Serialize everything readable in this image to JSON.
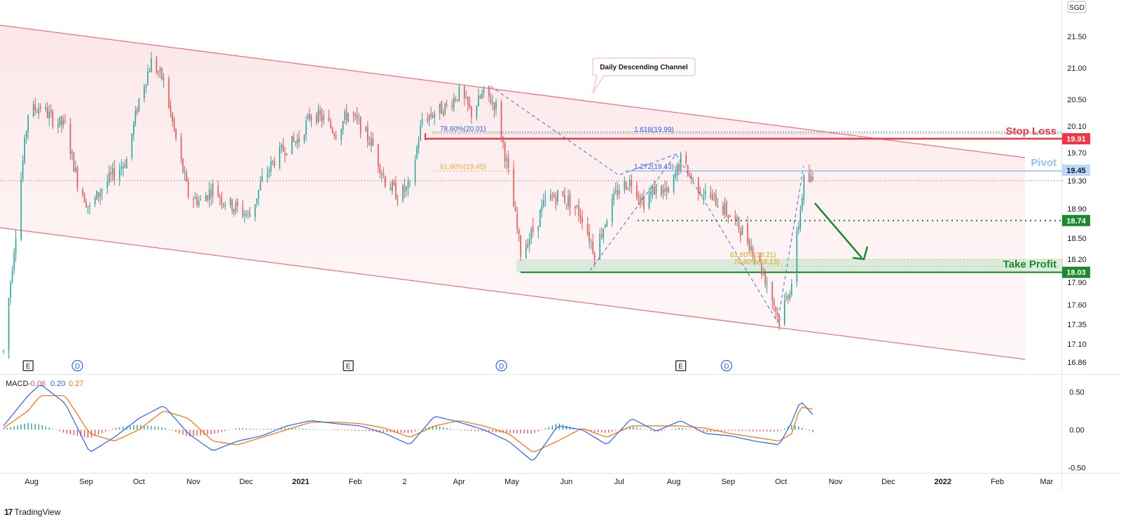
{
  "currency": "SGD",
  "branding": "TradingView",
  "chart_data": {
    "type": "candlestick",
    "title": "",
    "price_axis": {
      "ticks": [
        21.5,
        21.0,
        20.5,
        20.1,
        19.7,
        19.3,
        18.9,
        18.5,
        18.2,
        17.9,
        17.6,
        17.35,
        17.1,
        16.86
      ],
      "tick_labels": [
        "21.50",
        "21.00",
        "20.50",
        "20.10",
        "19.70",
        "19.30",
        "18.90",
        "18.50",
        "18.20",
        "17.90",
        "17.60",
        "17.35",
        "17.10",
        "16.86"
      ],
      "range": [
        16.86,
        21.5
      ]
    },
    "time_axis": {
      "labels": [
        "Aug",
        "Sep",
        "Oct",
        "Nov",
        "Dec",
        "2021",
        "Feb",
        "2",
        "Apr",
        "May",
        "Jun",
        "Jul",
        "Aug",
        "Sep",
        "Oct",
        "Nov",
        "Dec",
        "2022",
        "Feb",
        "Mar"
      ]
    },
    "price_path": [
      [
        "2020-07-24",
        17.0
      ],
      [
        "2020-07-31",
        18.6
      ],
      [
        "2020-08-07",
        20.3
      ],
      [
        "2020-08-14",
        20.4
      ],
      [
        "2020-08-21",
        20.2
      ],
      [
        "2020-08-28",
        20.1
      ],
      [
        "2020-09-04",
        19.3
      ],
      [
        "2020-09-11",
        18.9
      ],
      [
        "2020-09-18",
        19.2
      ],
      [
        "2020-09-25",
        19.4
      ],
      [
        "2020-10-02",
        19.6
      ],
      [
        "2020-10-09",
        20.5
      ],
      [
        "2020-10-16",
        21.1
      ],
      [
        "2020-10-23",
        20.8
      ],
      [
        "2020-10-30",
        19.9
      ],
      [
        "2020-11-06",
        19.1
      ],
      [
        "2020-11-13",
        19.0
      ],
      [
        "2020-11-20",
        19.2
      ],
      [
        "2020-11-27",
        19.0
      ],
      [
        "2020-12-04",
        18.9
      ],
      [
        "2020-12-11",
        18.8
      ],
      [
        "2020-12-18",
        19.3
      ],
      [
        "2020-12-25",
        19.6
      ],
      [
        "2021-01-01",
        19.8
      ],
      [
        "2021-01-08",
        19.9
      ],
      [
        "2021-01-15",
        20.3
      ],
      [
        "2021-01-22",
        20.2
      ],
      [
        "2021-01-29",
        20.0
      ],
      [
        "2021-02-05",
        20.3
      ],
      [
        "2021-02-12",
        20.1
      ],
      [
        "2021-02-19",
        19.8
      ],
      [
        "2021-02-26",
        19.3
      ],
      [
        "2021-03-05",
        19.1
      ],
      [
        "2021-03-12",
        19.2
      ],
      [
        "2021-03-19",
        20.2
      ],
      [
        "2021-03-26",
        20.3
      ],
      [
        "2021-04-02",
        20.4
      ],
      [
        "2021-04-09",
        20.6
      ],
      [
        "2021-04-16",
        20.3
      ],
      [
        "2021-04-23",
        20.6
      ],
      [
        "2021-04-30",
        20.4
      ],
      [
        "2021-05-07",
        19.4
      ],
      [
        "2021-05-14",
        18.3
      ],
      [
        "2021-05-21",
        18.6
      ],
      [
        "2021-05-28",
        19.0
      ],
      [
        "2021-06-04",
        19.1
      ],
      [
        "2021-06-11",
        19.0
      ],
      [
        "2021-06-18",
        18.8
      ],
      [
        "2021-06-25",
        18.3
      ],
      [
        "2021-07-02",
        18.8
      ],
      [
        "2021-07-09",
        19.2
      ],
      [
        "2021-07-16",
        19.3
      ],
      [
        "2021-07-23",
        19.0
      ],
      [
        "2021-07-30",
        19.2
      ],
      [
        "2021-08-06",
        19.1
      ],
      [
        "2021-08-13",
        19.6
      ],
      [
        "2021-08-20",
        19.3
      ],
      [
        "2021-08-27",
        19.1
      ],
      [
        "2021-09-03",
        19.0
      ],
      [
        "2021-09-10",
        18.8
      ],
      [
        "2021-09-17",
        18.6
      ],
      [
        "2021-09-24",
        18.3
      ],
      [
        "2021-10-01",
        17.9
      ],
      [
        "2021-10-08",
        17.4
      ],
      [
        "2021-10-15",
        17.9
      ],
      [
        "2021-10-22",
        19.3
      ],
      [
        "2021-10-27",
        19.3
      ]
    ],
    "lines": {
      "stop_loss": {
        "label": "Stop Loss",
        "value": "19.91",
        "color": "#f23645"
      },
      "pivot": {
        "label": "Pivot",
        "value": "19.45",
        "color": "#90bff9"
      },
      "support_1": {
        "value": "18.74",
        "color": "#1b8a2e"
      },
      "take_profit": {
        "label": "Take Profit",
        "value": "18.03",
        "color": "#1b8a2e"
      },
      "last_price": {
        "value": 19.3,
        "color": "#f23645"
      }
    },
    "fib_labels": {
      "top_786": "78.60%(20.01)",
      "top_618ext": "1.618(19.99)",
      "mid_618": "61.80%(19.45)",
      "mid_1272": "1.272(19.43)",
      "low_618": "61.80%(18.21)",
      "low_786": "78.60%(18.13)"
    },
    "annotations": {
      "channel_callout": "Daily Descending Channel"
    },
    "event_markers": [
      {
        "type": "E",
        "date": "2020-08-07"
      },
      {
        "type": "D",
        "date": "2020-09-04"
      },
      {
        "type": "E",
        "date": "2021-02-05"
      },
      {
        "type": "D",
        "date": "2021-05-03"
      },
      {
        "type": "E",
        "date": "2021-08-13"
      },
      {
        "type": "D",
        "date": "2021-09-08"
      }
    ],
    "macd": {
      "label": "MACD",
      "histogram_value": "-0.06",
      "macd_value": "0.20",
      "signal_value": "0.27",
      "colors": {
        "macd": "#2962ff",
        "signal": "#ff6d00",
        "hist_pos": "#26a69a",
        "hist_neg": "#ef5350",
        "label_neg": "#ef5350"
      },
      "ticks": [
        0.5,
        0.0,
        -0.5
      ],
      "tick_labels": [
        "0.50",
        "0.00",
        "-0.50"
      ],
      "range": [
        -0.55,
        0.65
      ],
      "series_path": [
        [
          "2020-07-24",
          0.05,
          0.02
        ],
        [
          "2020-08-07",
          0.45,
          0.25
        ],
        [
          "2020-08-14",
          0.6,
          0.45
        ],
        [
          "2020-08-28",
          0.35,
          0.45
        ],
        [
          "2020-09-11",
          -0.3,
          -0.05
        ],
        [
          "2020-09-25",
          -0.1,
          -0.15
        ],
        [
          "2020-10-09",
          0.15,
          0.0
        ],
        [
          "2020-10-23",
          0.32,
          0.25
        ],
        [
          "2020-11-06",
          -0.05,
          0.15
        ],
        [
          "2020-11-20",
          -0.28,
          -0.15
        ],
        [
          "2020-12-04",
          -0.15,
          -0.2
        ],
        [
          "2020-12-18",
          -0.08,
          -0.1
        ],
        [
          "2021-01-01",
          0.05,
          0.0
        ],
        [
          "2021-01-15",
          0.12,
          0.1
        ],
        [
          "2021-01-29",
          0.08,
          0.1
        ],
        [
          "2021-02-12",
          0.05,
          0.08
        ],
        [
          "2021-02-26",
          -0.05,
          0.02
        ],
        [
          "2021-03-12",
          -0.2,
          -0.1
        ],
        [
          "2021-03-26",
          0.18,
          0.05
        ],
        [
          "2021-04-09",
          0.1,
          0.12
        ],
        [
          "2021-04-23",
          0.0,
          0.05
        ],
        [
          "2021-05-07",
          -0.15,
          -0.05
        ],
        [
          "2021-05-21",
          -0.42,
          -0.3
        ],
        [
          "2021-06-04",
          0.05,
          -0.15
        ],
        [
          "2021-06-18",
          0.0,
          0.02
        ],
        [
          "2021-07-02",
          -0.2,
          -0.1
        ],
        [
          "2021-07-16",
          0.15,
          0.05
        ],
        [
          "2021-07-30",
          -0.02,
          0.05
        ],
        [
          "2021-08-13",
          0.12,
          0.05
        ],
        [
          "2021-08-27",
          -0.05,
          0.02
        ],
        [
          "2021-09-10",
          -0.08,
          -0.05
        ],
        [
          "2021-09-24",
          -0.15,
          -0.1
        ],
        [
          "2021-10-08",
          -0.2,
          -0.15
        ],
        [
          "2021-10-15",
          0.1,
          -0.05
        ],
        [
          "2021-10-20",
          0.38,
          0.3
        ],
        [
          "2021-10-27",
          0.2,
          0.27
        ]
      ]
    }
  }
}
